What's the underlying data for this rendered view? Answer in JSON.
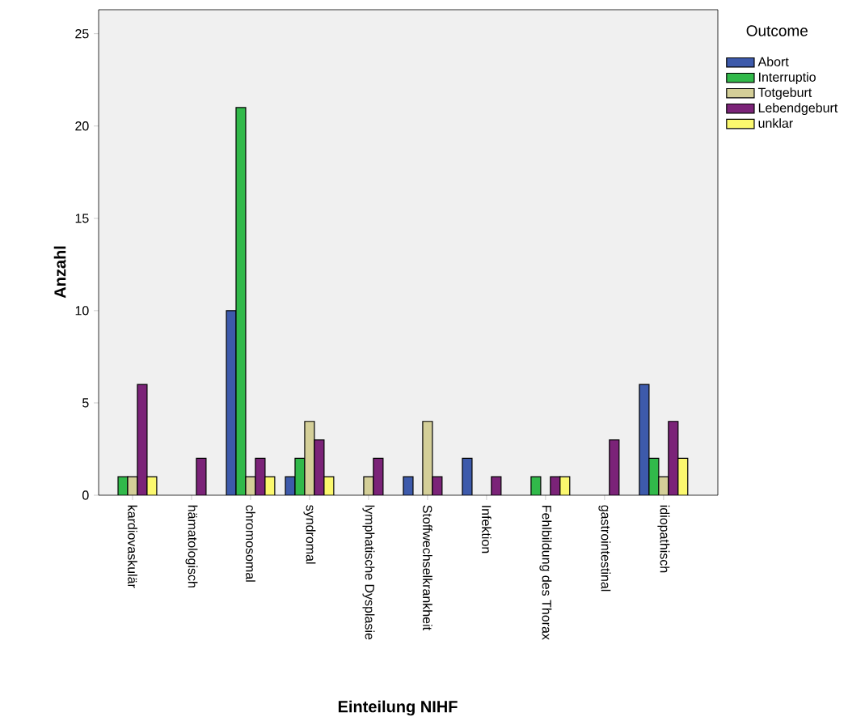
{
  "chart_data": {
    "type": "bar",
    "xlabel": "Einteilung NIHF",
    "ylabel": "Anzahl",
    "legend_title": "Outcome",
    "legend": "right",
    "categories": [
      "kardiovaskulär",
      "hämatologisch",
      "chromosomal",
      "syndromal",
      "lymphatische Dysplasie",
      "Stoffwechselkrankheit",
      "Infektion",
      "Fehlbildung des Thorax",
      "gastrointestinal",
      "idiopathisch"
    ],
    "series": [
      {
        "name": "Abort",
        "color": "#3d5aab",
        "values": [
          null,
          null,
          10,
          1,
          null,
          1,
          2,
          null,
          null,
          6
        ]
      },
      {
        "name": "Interruptio",
        "color": "#31b94a",
        "values": [
          1,
          null,
          21,
          2,
          null,
          null,
          null,
          1,
          null,
          2
        ]
      },
      {
        "name": "Totgeburt",
        "color": "#d4cf98",
        "values": [
          1,
          null,
          1,
          4,
          1,
          4,
          null,
          null,
          null,
          1
        ]
      },
      {
        "name": "Lebendgeburt",
        "color": "#7b2378",
        "values": [
          6,
          2,
          2,
          3,
          2,
          1,
          1,
          1,
          3,
          4
        ]
      },
      {
        "name": "unklar",
        "color": "#fbf86e",
        "values": [
          1,
          null,
          1,
          1,
          null,
          null,
          null,
          1,
          null,
          2
        ]
      }
    ],
    "ylim": [
      0,
      26.3
    ],
    "yticks": [
      0,
      5,
      10,
      15,
      20,
      25
    ],
    "grid": false
  }
}
